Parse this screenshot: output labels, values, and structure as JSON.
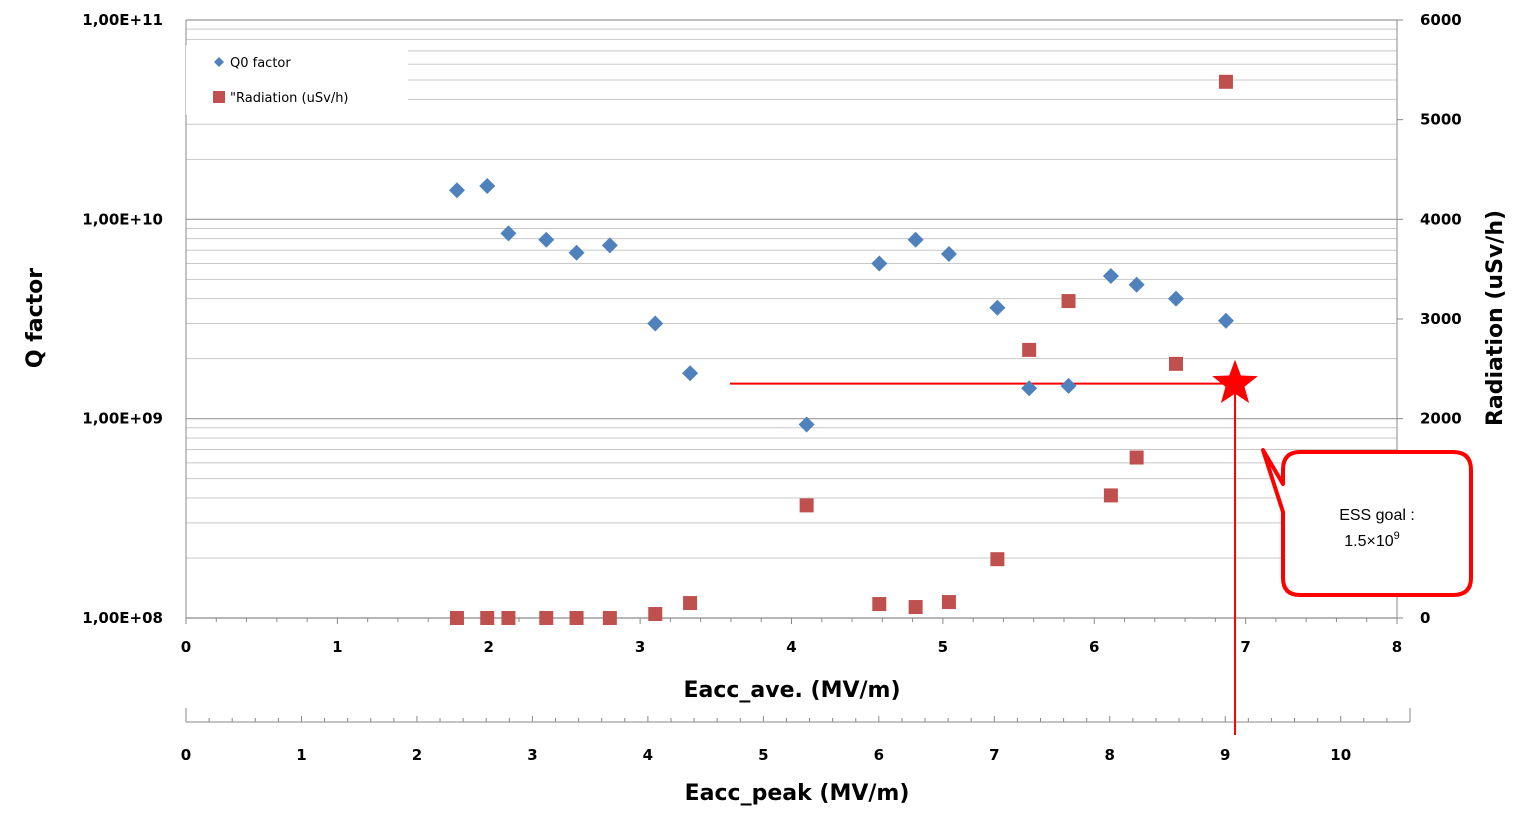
{
  "chart_data": {
    "type": "scatter",
    "y_left": {
      "label": "Q factor",
      "scale": "log",
      "range": [
        100000000,
        100000000000
      ],
      "ticks": [
        {
          "value": 100000000,
          "label": "1,00E+08"
        },
        {
          "value": 1000000000,
          "label": "1,00E+09"
        },
        {
          "value": 10000000000,
          "label": "1,00E+10"
        },
        {
          "value": 100000000000,
          "label": "1,00E+11"
        }
      ]
    },
    "y_right": {
      "label": "Radiation (uSv/h)",
      "scale": "linear",
      "range": [
        0,
        6000
      ],
      "ticks": [
        {
          "value": 0,
          "label": "0"
        },
        {
          "value": 1000,
          "label": "1000"
        },
        {
          "value": 2000,
          "label": "2000"
        },
        {
          "value": 3000,
          "label": "3000"
        },
        {
          "value": 4000,
          "label": "4000"
        },
        {
          "value": 5000,
          "label": "5000"
        },
        {
          "value": 6000,
          "label": "6000"
        }
      ]
    },
    "x_primary": {
      "label": "Eacc_ave. (MV/m)",
      "range": [
        0,
        8
      ],
      "ticks": [
        {
          "value": 0,
          "label": "0"
        },
        {
          "value": 1,
          "label": "1"
        },
        {
          "value": 2,
          "label": "2"
        },
        {
          "value": 3,
          "label": "3"
        },
        {
          "value": 4,
          "label": "4"
        },
        {
          "value": 5,
          "label": "5"
        },
        {
          "value": 6,
          "label": "6"
        },
        {
          "value": 7,
          "label": "7"
        },
        {
          "value": 8,
          "label": "8"
        }
      ]
    },
    "x_secondary": {
      "label": "Eacc_peak (MV/m)",
      "range": [
        0,
        10.6
      ],
      "ticks": [
        {
          "value": 0,
          "label": "0"
        },
        {
          "value": 1,
          "label": "1"
        },
        {
          "value": 2,
          "label": "2"
        },
        {
          "value": 3,
          "label": "3"
        },
        {
          "value": 4,
          "label": "4"
        },
        {
          "value": 5,
          "label": "5"
        },
        {
          "value": 6,
          "label": "6"
        },
        {
          "value": 7,
          "label": "7"
        },
        {
          "value": 8,
          "label": "8"
        },
        {
          "value": 9,
          "label": "9"
        },
        {
          "value": 10,
          "label": "10"
        }
      ]
    },
    "legend_position": "top-left",
    "grid": "horizontal",
    "series": [
      {
        "name": "Q0 factor",
        "axis": "left",
        "marker": "diamond",
        "color": "#4f81bd",
        "points": [
          {
            "x": 1.79,
            "y": 14000000000
          },
          {
            "x": 1.99,
            "y": 14700000000
          },
          {
            "x": 2.13,
            "y": 8500000000
          },
          {
            "x": 2.38,
            "y": 7900000000
          },
          {
            "x": 2.58,
            "y": 6800000000
          },
          {
            "x": 2.8,
            "y": 7400000000
          },
          {
            "x": 3.1,
            "y": 3000000000
          },
          {
            "x": 3.33,
            "y": 1690000000
          },
          {
            "x": 4.1,
            "y": 935000000
          },
          {
            "x": 4.58,
            "y": 6000000000
          },
          {
            "x": 4.82,
            "y": 7900000000
          },
          {
            "x": 5.04,
            "y": 6700000000
          },
          {
            "x": 5.36,
            "y": 3600000000
          },
          {
            "x": 5.57,
            "y": 1420000000
          },
          {
            "x": 5.83,
            "y": 1460000000
          },
          {
            "x": 6.11,
            "y": 5200000000
          },
          {
            "x": 6.28,
            "y": 4700000000
          },
          {
            "x": 6.54,
            "y": 4000000000
          },
          {
            "x": 6.87,
            "y": 3100000000
          }
        ]
      },
      {
        "name": "\"Radiation (uSv/h)",
        "axis": "right",
        "marker": "square",
        "color": "#c0504d",
        "points": [
          {
            "x": 1.79,
            "y": 0
          },
          {
            "x": 1.99,
            "y": 0
          },
          {
            "x": 2.13,
            "y": 0
          },
          {
            "x": 2.38,
            "y": 0
          },
          {
            "x": 2.58,
            "y": 0
          },
          {
            "x": 2.8,
            "y": 0
          },
          {
            "x": 3.1,
            "y": 40
          },
          {
            "x": 3.33,
            "y": 150
          },
          {
            "x": 4.1,
            "y": 1130
          },
          {
            "x": 4.58,
            "y": 140
          },
          {
            "x": 4.82,
            "y": 110
          },
          {
            "x": 5.04,
            "y": 160
          },
          {
            "x": 5.36,
            "y": 590
          },
          {
            "x": 5.57,
            "y": 2690
          },
          {
            "x": 5.83,
            "y": 3180
          },
          {
            "x": 6.11,
            "y": 1230
          },
          {
            "x": 6.28,
            "y": 1610
          },
          {
            "x": 6.54,
            "y": 2550
          },
          {
            "x": 6.87,
            "y": 5380
          }
        ]
      }
    ],
    "annotation": {
      "goal_x": 6.93,
      "goal_y": 1500000000,
      "text_line1": "ESS goal :",
      "text_base": "1.5×10",
      "text_exp": "9",
      "color": "#ff0000"
    }
  }
}
